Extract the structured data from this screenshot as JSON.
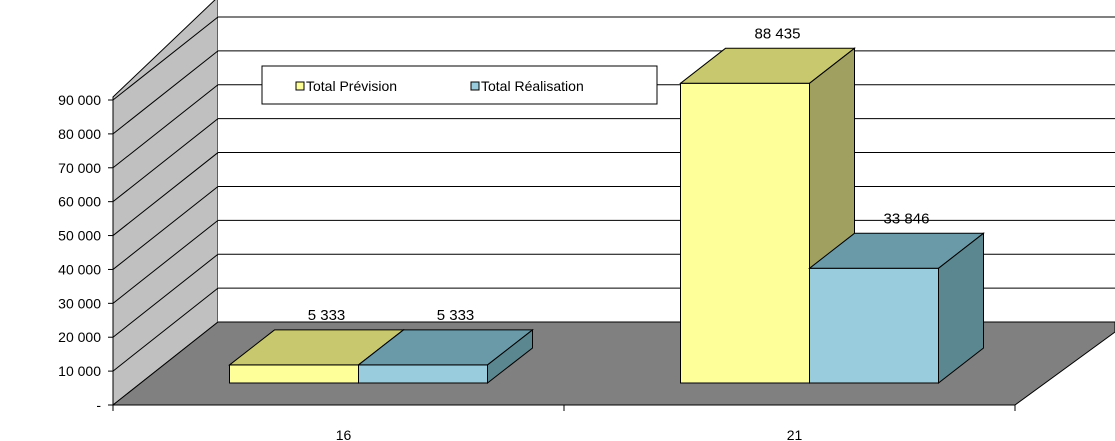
{
  "chart_data": {
    "type": "bar",
    "style": "3d-clustered-column",
    "categories": [
      "16",
      "21"
    ],
    "series": [
      {
        "name": "Total Prévision",
        "values": [
          5333,
          88435
        ],
        "color": "#ffff99",
        "top_color": "#c8c86f",
        "side_color": "#a0a060"
      },
      {
        "name": "Total Réalisation",
        "values": [
          5333,
          33846
        ],
        "color": "#99ccdd",
        "top_color": "#6a9aa8",
        "side_color": "#5a8790"
      }
    ],
    "data_labels": [
      [
        "5 333",
        "88 435"
      ],
      [
        "5 333",
        "33 846"
      ]
    ],
    "y_ticks": [
      {
        "value": 0,
        "label": "-"
      },
      {
        "value": 10000,
        "label": "10 000"
      },
      {
        "value": 20000,
        "label": "20 000"
      },
      {
        "value": 30000,
        "label": "30 000"
      },
      {
        "value": 40000,
        "label": "40 000"
      },
      {
        "value": 50000,
        "label": "50 000"
      },
      {
        "value": 60000,
        "label": "60 000"
      },
      {
        "value": 70000,
        "label": "70 000"
      },
      {
        "value": 80000,
        "label": "80 000"
      },
      {
        "value": 90000,
        "label": "90 000"
      }
    ],
    "ylim": [
      0,
      90000
    ],
    "grid": true,
    "legend": "top-left",
    "title": "",
    "xlabel": "",
    "ylabel": "",
    "wall_color": "#c0c0c0",
    "floor_color": "#808080"
  }
}
